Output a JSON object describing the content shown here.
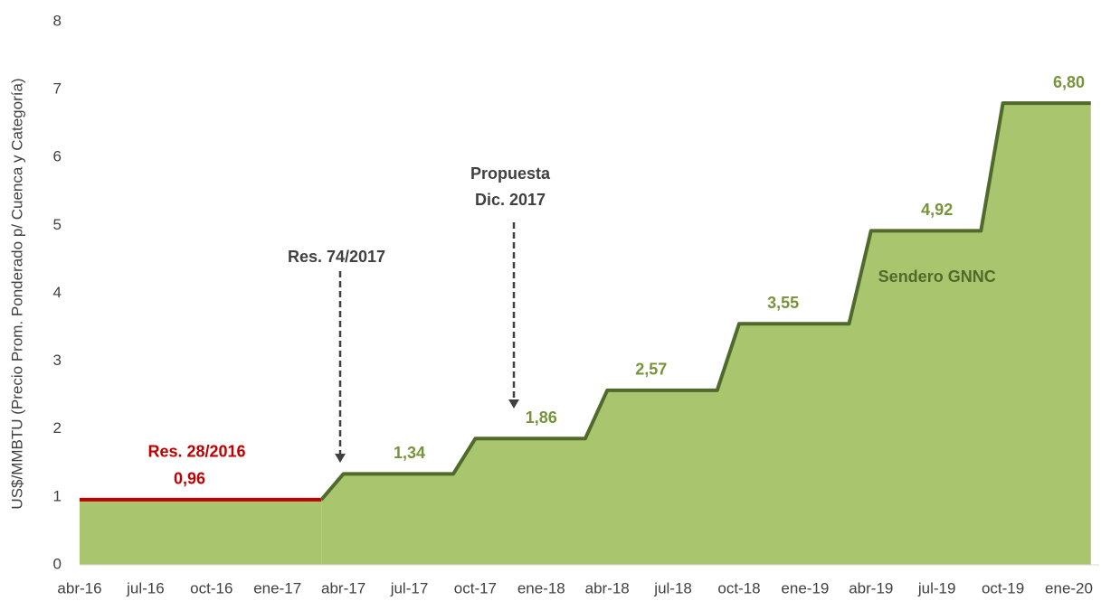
{
  "chart_data": {
    "type": "area",
    "y_axis_label": "US$/MMBTU (Precio Prom. Ponderado p/ Cuenca y Categoría)",
    "categories": [
      "abr-16",
      null,
      null,
      "jul-16",
      null,
      null,
      "oct-16",
      null,
      null,
      "ene-17",
      null,
      null,
      "abr-17",
      null,
      null,
      "jul-17",
      null,
      null,
      "oct-17",
      null,
      null,
      "ene-18",
      null,
      null,
      "abr-18",
      null,
      null,
      "jul-18",
      null,
      null,
      "oct-18",
      null,
      null,
      "ene-19",
      null,
      null,
      "abr-19",
      null,
      null,
      "jul-19",
      null,
      null,
      "oct-19",
      null,
      null,
      "ene-20",
      null
    ],
    "fill": "#a9c66f",
    "series": [
      {
        "name": "Res. 28/2016",
        "color": "#c00000",
        "label_color": "#c00000",
        "values": [
          0.96,
          0.96,
          0.96,
          0.96,
          0.96,
          0.96,
          0.96,
          0.96,
          0.96,
          0.96,
          0.96,
          0.96,
          null,
          null,
          null,
          null,
          null,
          null,
          null,
          null,
          null,
          null,
          null,
          null,
          null,
          null,
          null,
          null,
          null,
          null,
          null,
          null,
          null,
          null,
          null,
          null,
          null,
          null,
          null,
          null,
          null,
          null,
          null,
          null,
          null,
          null,
          null
        ],
        "value_labels": [
          null,
          null,
          null,
          null,
          null,
          "0,96",
          null,
          null,
          null,
          null,
          null,
          null,
          null,
          null,
          null,
          null,
          null,
          null,
          null,
          null,
          null,
          null,
          null,
          null,
          null,
          null,
          null,
          null,
          null,
          null,
          null,
          null,
          null,
          null,
          null,
          null,
          null,
          null,
          null,
          null,
          null,
          null,
          null,
          null,
          null,
          null,
          null
        ]
      },
      {
        "name": "Sendero GNNC",
        "color": "#4f6a2a",
        "label_color": "#77933c",
        "values": [
          null,
          null,
          null,
          null,
          null,
          null,
          null,
          null,
          null,
          null,
          null,
          0.96,
          1.34,
          1.34,
          1.34,
          1.34,
          1.34,
          1.34,
          1.86,
          1.86,
          1.86,
          1.86,
          1.86,
          1.86,
          2.57,
          2.57,
          2.57,
          2.57,
          2.57,
          2.57,
          3.55,
          3.55,
          3.55,
          3.55,
          3.55,
          3.55,
          4.92,
          4.92,
          4.92,
          4.92,
          4.92,
          4.92,
          6.8,
          6.8,
          6.8,
          6.8,
          6.8
        ],
        "value_labels": [
          null,
          null,
          null,
          null,
          null,
          null,
          null,
          null,
          null,
          null,
          null,
          null,
          null,
          null,
          null,
          "1,34",
          null,
          null,
          null,
          null,
          null,
          "1,86",
          null,
          null,
          null,
          null,
          "2,57",
          null,
          null,
          null,
          null,
          null,
          "3,55",
          null,
          null,
          null,
          null,
          null,
          null,
          "4,92",
          null,
          null,
          null,
          null,
          null,
          "6,80",
          null
        ]
      }
    ],
    "annotations": [
      {
        "text": [
          "Res. 74/2017"
        ]
      },
      {
        "text": [
          "Propuesta",
          "Dic. 2017"
        ]
      }
    ],
    "ylim": [
      0,
      8
    ],
    "yticks": [
      0,
      1,
      2,
      3,
      4,
      5,
      6,
      7,
      8
    ],
    "grid": false
  }
}
